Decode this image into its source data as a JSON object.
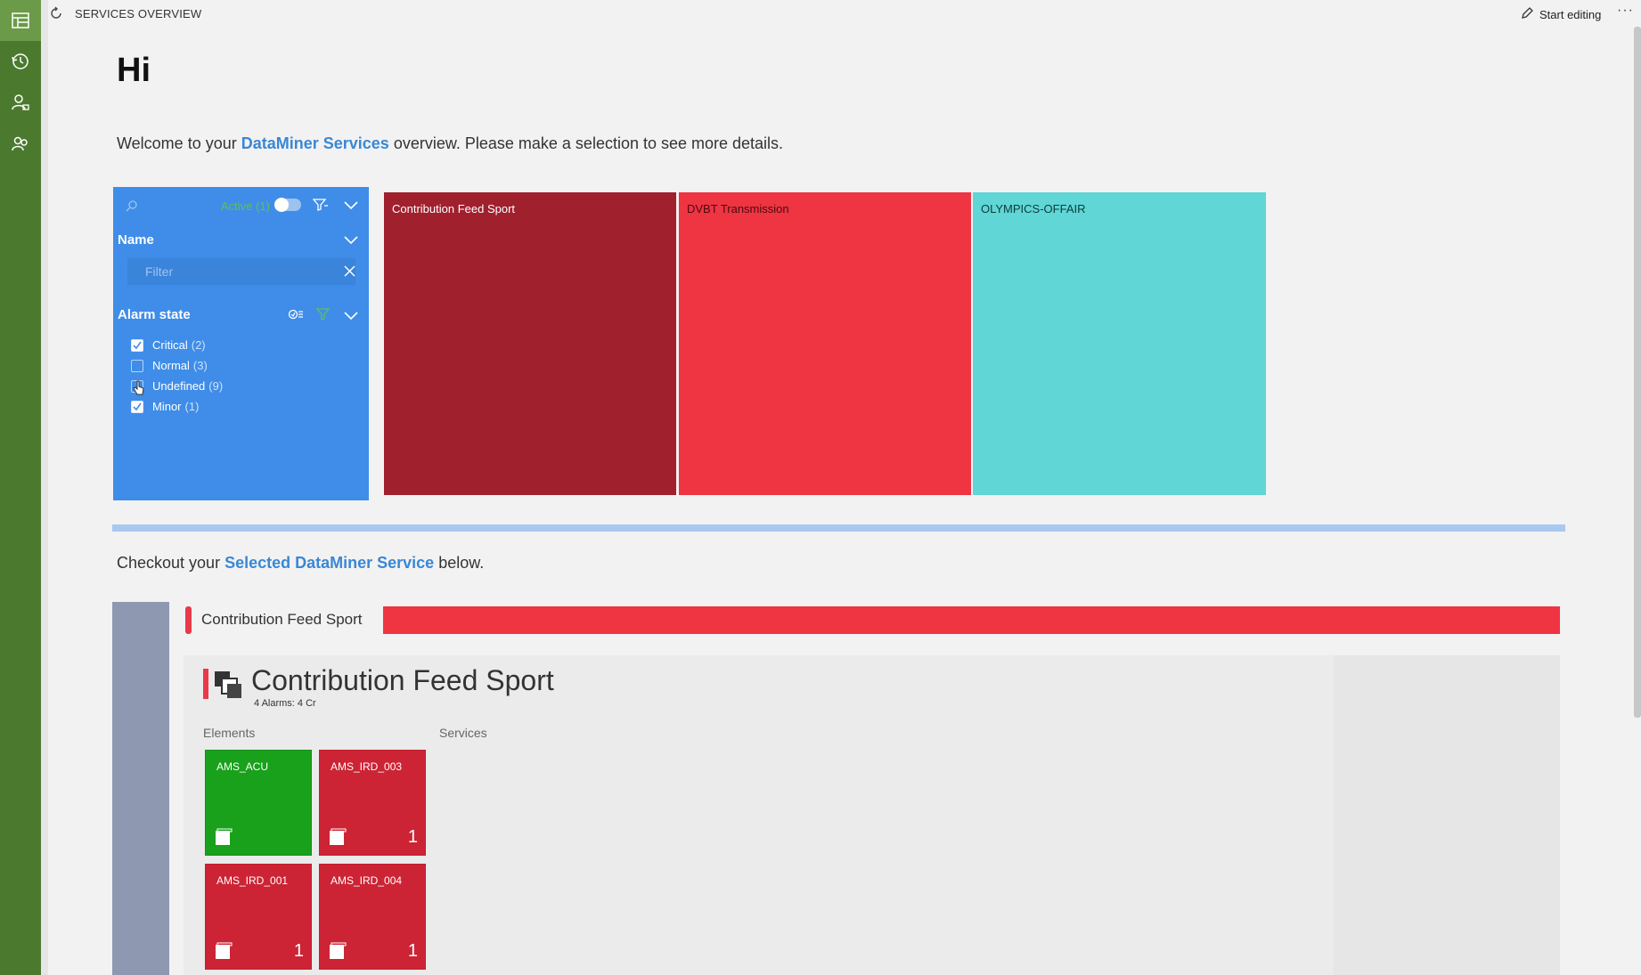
{
  "app": {
    "header_title": "SERVICES OVERVIEW",
    "start_editing": "Start editing",
    "more": "···"
  },
  "greeting": {
    "title": "Hi",
    "welcome_prefix": "Welcome to your ",
    "welcome_link": "DataMiner Services",
    "welcome_suffix": " overview. Please make a selection to see more details."
  },
  "filter_panel": {
    "active_label": "Active (1)",
    "name_header": "Name",
    "filter_placeholder": "Filter",
    "alarm_header": "Alarm state",
    "options": [
      {
        "label": "Critical",
        "count": "(2)",
        "checked": true
      },
      {
        "label": "Normal",
        "count": "(3)",
        "checked": false
      },
      {
        "label": "Undefined",
        "count": "(9)",
        "checked": false
      },
      {
        "label": "Minor",
        "count": "(1)",
        "checked": true
      }
    ]
  },
  "service_tiles": [
    {
      "name": "Contribution Feed Sport",
      "color": "#a0202e"
    },
    {
      "name": "DVBT Transmission",
      "color": "#ef3442"
    },
    {
      "name": "OLYMPICS-OFFAIR",
      "color": "#60d6d6"
    }
  ],
  "checkout": {
    "prefix": "Checkout your ",
    "link": "Selected DataMiner Service",
    "suffix": " below."
  },
  "detail": {
    "bar_name": "Contribution Feed Sport",
    "title": "Contribution Feed Sport",
    "alarm_summary": "4 Alarms:  4 Cr",
    "elements_label": "Elements",
    "services_label": "Services",
    "elements": [
      {
        "name": "AMS_ACU",
        "count": "",
        "color": "#19a11b"
      },
      {
        "name": "AMS_IRD_003",
        "count": "1",
        "color": "#cc2435"
      },
      {
        "name": "AMS_IRD_001",
        "count": "1",
        "color": "#cc2435"
      },
      {
        "name": "AMS_IRD_004",
        "count": "1",
        "color": "#cc2435"
      }
    ]
  },
  "colors": {
    "rail": "#4b7a2e",
    "panel": "#3f8de8",
    "accent": "#3a87d6",
    "critical": "#ef3442"
  }
}
